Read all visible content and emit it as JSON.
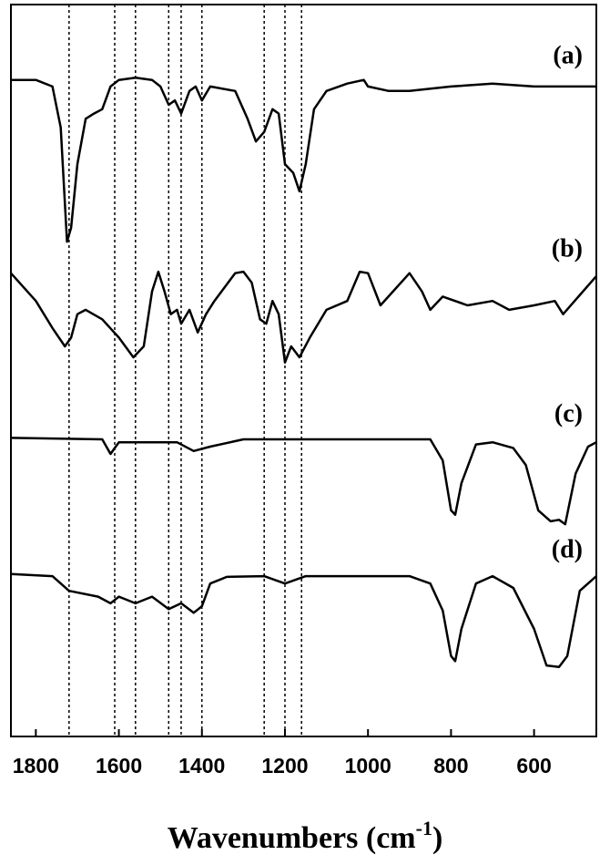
{
  "chart_data": {
    "type": "line",
    "xlabel": [
      "Wavenumbers (cm",
      "-1",
      ")"
    ],
    "xlim": [
      1860,
      450
    ],
    "ylim": [
      0,
      100
    ],
    "xticks": [
      1800,
      1600,
      1400,
      1200,
      1000,
      800,
      600
    ],
    "reference_lines": [
      1720,
      1610,
      1560,
      1480,
      1450,
      1400,
      1250,
      1200,
      1160
    ],
    "series": [
      {
        "name": "(a)",
        "color": "#000000",
        "x": [
          1860,
          1800,
          1760,
          1740,
          1725,
          1715,
          1700,
          1680,
          1660,
          1640,
          1620,
          1600,
          1560,
          1520,
          1500,
          1480,
          1465,
          1450,
          1430,
          1415,
          1400,
          1380,
          1320,
          1290,
          1270,
          1250,
          1230,
          1215,
          1200,
          1180,
          1165,
          1150,
          1130,
          1100,
          1050,
          1010,
          1000,
          950,
          900,
          800,
          700,
          600,
          450
        ],
        "values": [
          89.7,
          89.7,
          88.8,
          83.2,
          67.6,
          69.5,
          78.2,
          84.4,
          85.1,
          85.7,
          88.8,
          89.7,
          90.0,
          89.7,
          88.8,
          86.3,
          86.9,
          85.1,
          88.2,
          88.8,
          86.9,
          88.8,
          88.2,
          84.4,
          81.3,
          82.6,
          85.7,
          85.1,
          78.2,
          77.0,
          74.5,
          78.2,
          85.7,
          88.2,
          89.2,
          89.7,
          88.8,
          88.2,
          88.2,
          88.8,
          89.2,
          88.8,
          88.8
        ]
      },
      {
        "name": "(b)",
        "color": "#000000",
        "x": [
          1860,
          1800,
          1760,
          1730,
          1715,
          1700,
          1680,
          1640,
          1600,
          1565,
          1540,
          1520,
          1505,
          1490,
          1475,
          1460,
          1450,
          1430,
          1410,
          1390,
          1370,
          1320,
          1300,
          1280,
          1260,
          1245,
          1230,
          1215,
          1200,
          1185,
          1165,
          1140,
          1100,
          1050,
          1020,
          1000,
          970,
          900,
          870,
          850,
          820,
          760,
          700,
          660,
          600,
          550,
          530,
          450
        ],
        "values": [
          63.3,
          59.5,
          55.8,
          53.3,
          54.5,
          57.7,
          58.3,
          57.0,
          54.5,
          51.8,
          53.3,
          60.8,
          63.5,
          60.8,
          57.7,
          58.3,
          56.4,
          58.3,
          55.2,
          57.7,
          59.5,
          63.3,
          63.5,
          62.0,
          57.0,
          56.4,
          59.5,
          57.7,
          51.1,
          53.3,
          51.8,
          54.5,
          58.3,
          59.5,
          63.5,
          63.3,
          58.9,
          63.3,
          60.8,
          58.3,
          60.1,
          58.9,
          59.5,
          58.3,
          58.9,
          59.5,
          57.7,
          62.9
        ]
      },
      {
        "name": "(c)",
        "color": "#000000",
        "x": [
          1860,
          1640,
          1620,
          1600,
          1460,
          1420,
          1380,
          1300,
          850,
          820,
          800,
          790,
          775,
          740,
          700,
          650,
          620,
          590,
          560,
          540,
          525,
          500,
          470,
          450
        ],
        "values": [
          40.8,
          40.6,
          38.6,
          40.2,
          40.2,
          39.0,
          39.6,
          40.6,
          40.6,
          37.7,
          30.9,
          30.3,
          34.6,
          39.9,
          40.2,
          39.4,
          37.1,
          30.9,
          29.4,
          29.6,
          29.0,
          35.9,
          39.6,
          40.2
        ]
      },
      {
        "name": "(d)",
        "color": "#000000",
        "x": [
          1860,
          1760,
          1720,
          1650,
          1620,
          1600,
          1560,
          1520,
          1480,
          1450,
          1420,
          1400,
          1380,
          1340,
          1250,
          1200,
          1150,
          900,
          850,
          820,
          800,
          790,
          775,
          740,
          700,
          650,
          600,
          570,
          540,
          520,
          490,
          450
        ],
        "values": [
          22.2,
          21.9,
          19.9,
          19.1,
          18.2,
          19.1,
          18.2,
          19.1,
          17.4,
          18.2,
          16.9,
          17.8,
          20.9,
          21.8,
          21.9,
          20.9,
          21.9,
          21.9,
          20.9,
          17.2,
          11.0,
          10.3,
          14.7,
          20.9,
          21.9,
          20.3,
          14.7,
          9.7,
          9.5,
          11.0,
          19.9,
          21.9
        ]
      }
    ]
  }
}
